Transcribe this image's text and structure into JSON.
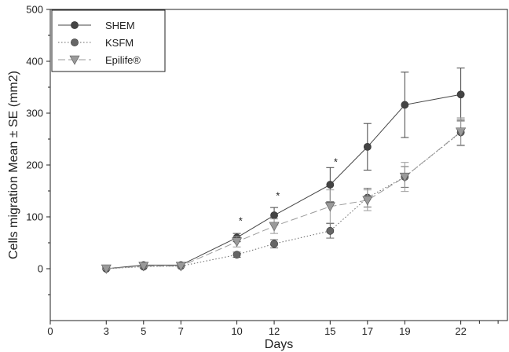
{
  "chart_data": {
    "type": "line",
    "xlabel": "Days",
    "ylabel": "Cells migration Mean ± SE (mm2)",
    "xlim": [
      0,
      24.5
    ],
    "ylim": [
      -100,
      500
    ],
    "x_ticks": [
      0,
      3,
      5,
      7,
      10,
      12,
      15,
      17,
      19,
      22
    ],
    "x_tick_labels": [
      "0",
      "3",
      "5",
      "7",
      "10",
      "12",
      "15",
      "17",
      "19",
      "22"
    ],
    "y_ticks": [
      0,
      100,
      200,
      300,
      400,
      500
    ],
    "y_tick_labels": [
      "0",
      "100",
      "200",
      "300",
      "400",
      "500"
    ],
    "grid": false,
    "legend_position": "top-left",
    "x": [
      3,
      5,
      7,
      10,
      12,
      15,
      17,
      19,
      22
    ],
    "series": [
      {
        "name": "SHEM",
        "color": "#444444",
        "marker": "circle",
        "line": "solid",
        "values": [
          0,
          7,
          7,
          60,
          103,
          162,
          235,
          316,
          336
        ],
        "errors": [
          2,
          3,
          3,
          8,
          15,
          33,
          45,
          63,
          51
        ]
      },
      {
        "name": "KSFM",
        "color": "#666666",
        "marker": "circle",
        "line": "dotted",
        "values": [
          0,
          4,
          5,
          27,
          48,
          73,
          137,
          177,
          263
        ],
        "errors": [
          2,
          2,
          2,
          5,
          8,
          14,
          18,
          20,
          25
        ]
      },
      {
        "name": "Epilife®",
        "color": "#9a9a9a",
        "marker": "triangle-down",
        "line": "dashed",
        "values": [
          0,
          5,
          5,
          52,
          82,
          120,
          132,
          177,
          264
        ],
        "errors": [
          2,
          2,
          2,
          10,
          14,
          32,
          20,
          28,
          27
        ]
      }
    ],
    "annotations": [
      {
        "text": "*",
        "x": 10.2,
        "y": 92
      },
      {
        "text": "*",
        "x": 12.2,
        "y": 140
      },
      {
        "text": "*",
        "x": 15.3,
        "y": 205
      }
    ]
  }
}
